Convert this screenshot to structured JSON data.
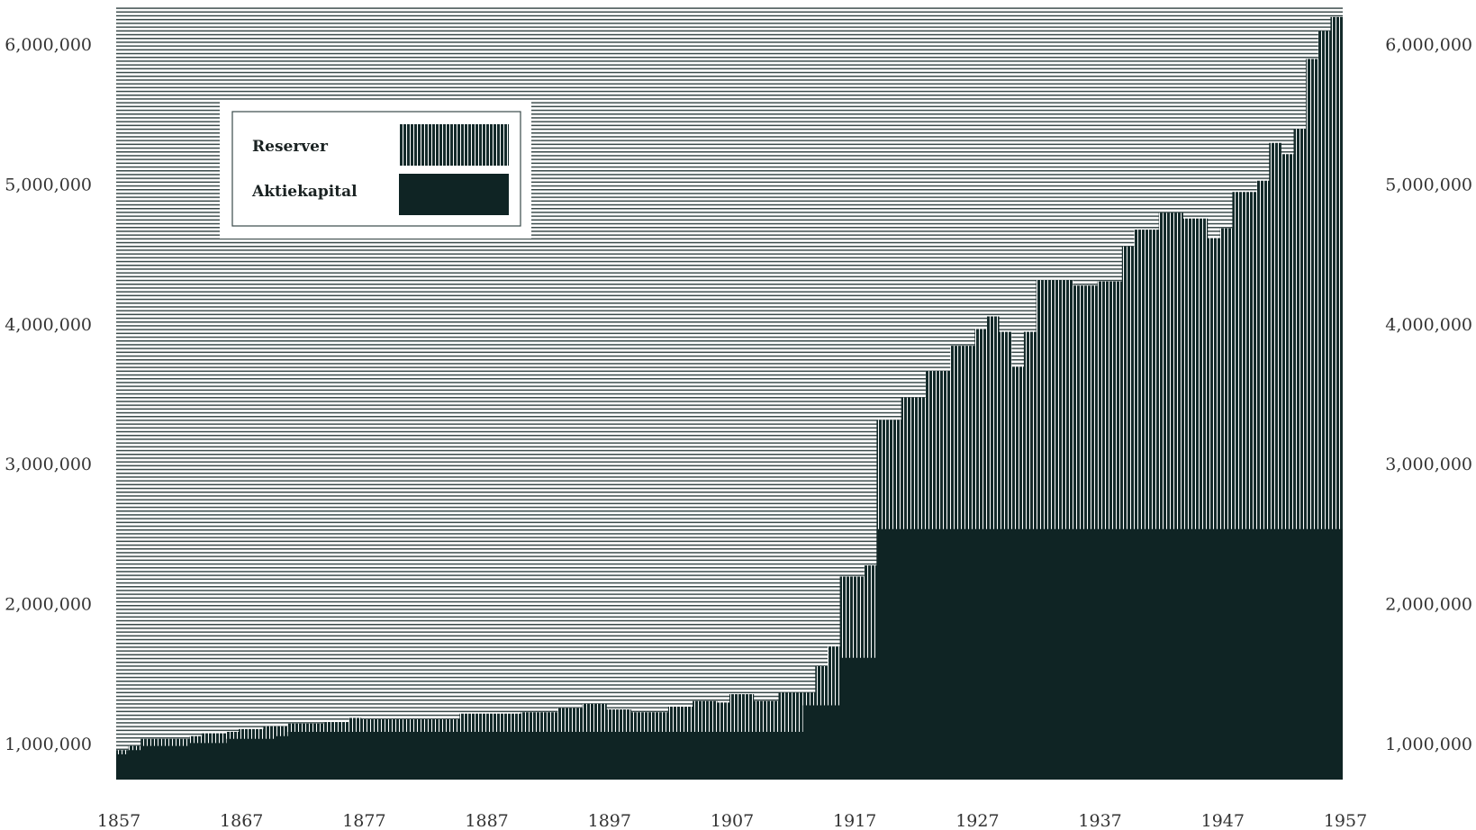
{
  "chart_data": {
    "type": "area",
    "title": "",
    "xlabel": "",
    "ylabel": "",
    "xlim": [
      1857,
      1957
    ],
    "ylim": [
      750000,
      6300000
    ],
    "y_ticks": [
      1000000,
      2000000,
      3000000,
      4000000,
      5000000,
      6000000
    ],
    "y_tick_labels": [
      "1,000,000",
      "2,000,000",
      "3,000,000",
      "4,000,000",
      "5,000,000",
      "6,000,000"
    ],
    "x_ticks": [
      1857,
      1867,
      1877,
      1887,
      1897,
      1907,
      1917,
      1927,
      1937,
      1947,
      1957
    ],
    "x_tick_labels": [
      "1857",
      "1867",
      "1877",
      "1887",
      "1897",
      "1907",
      "1917",
      "1927",
      "1937",
      "1947",
      "1957"
    ],
    "stacked": true,
    "step": true,
    "legend": {
      "position": "top-left",
      "entries": [
        "Reserver",
        "Aktiekapital"
      ]
    },
    "colors": {
      "aktiekapital": "#0f2424",
      "reserver": "#142a2a",
      "background_lines": "#3a4a4a"
    },
    "series": [
      {
        "name": "Aktiekapital",
        "points": [
          [
            1857,
            930000
          ],
          [
            1858,
            960000
          ],
          [
            1859,
            990000
          ],
          [
            1863,
            1010000
          ],
          [
            1866,
            1040000
          ],
          [
            1870,
            1060000
          ],
          [
            1871,
            1090000
          ],
          [
            1913,
            1280000
          ],
          [
            1916,
            1620000
          ],
          [
            1919,
            2540000
          ],
          [
            1957,
            2540000
          ]
        ]
      },
      {
        "name": "Reserver",
        "points": [
          [
            1857,
            960000
          ],
          [
            1858,
            990000
          ],
          [
            1859,
            1040000
          ],
          [
            1863,
            1060000
          ],
          [
            1864,
            1080000
          ],
          [
            1866,
            1090000
          ],
          [
            1867,
            1110000
          ],
          [
            1869,
            1130000
          ],
          [
            1871,
            1150000
          ],
          [
            1874,
            1160000
          ],
          [
            1876,
            1190000
          ],
          [
            1877,
            1180000
          ],
          [
            1885,
            1220000
          ],
          [
            1890,
            1230000
          ],
          [
            1893,
            1260000
          ],
          [
            1895,
            1290000
          ],
          [
            1897,
            1250000
          ],
          [
            1899,
            1230000
          ],
          [
            1902,
            1270000
          ],
          [
            1904,
            1310000
          ],
          [
            1906,
            1300000
          ],
          [
            1907,
            1360000
          ],
          [
            1909,
            1310000
          ],
          [
            1911,
            1370000
          ],
          [
            1914,
            1560000
          ],
          [
            1915,
            1700000
          ],
          [
            1916,
            2200000
          ],
          [
            1918,
            2280000
          ],
          [
            1919,
            3320000
          ],
          [
            1921,
            3480000
          ],
          [
            1923,
            3670000
          ],
          [
            1925,
            3850000
          ],
          [
            1927,
            3970000
          ],
          [
            1928,
            4060000
          ],
          [
            1929,
            3950000
          ],
          [
            1930,
            3700000
          ],
          [
            1931,
            3950000
          ],
          [
            1932,
            4320000
          ],
          [
            1935,
            4280000
          ],
          [
            1937,
            4310000
          ],
          [
            1939,
            4560000
          ],
          [
            1940,
            4680000
          ],
          [
            1942,
            4800000
          ],
          [
            1944,
            4760000
          ],
          [
            1946,
            4620000
          ],
          [
            1947,
            4690000
          ],
          [
            1948,
            4950000
          ],
          [
            1950,
            5030000
          ],
          [
            1951,
            5300000
          ],
          [
            1952,
            5220000
          ],
          [
            1953,
            5400000
          ],
          [
            1954,
            5900000
          ],
          [
            1955,
            6100000
          ],
          [
            1956,
            6200000
          ],
          [
            1957,
            6230000
          ]
        ]
      }
    ]
  }
}
